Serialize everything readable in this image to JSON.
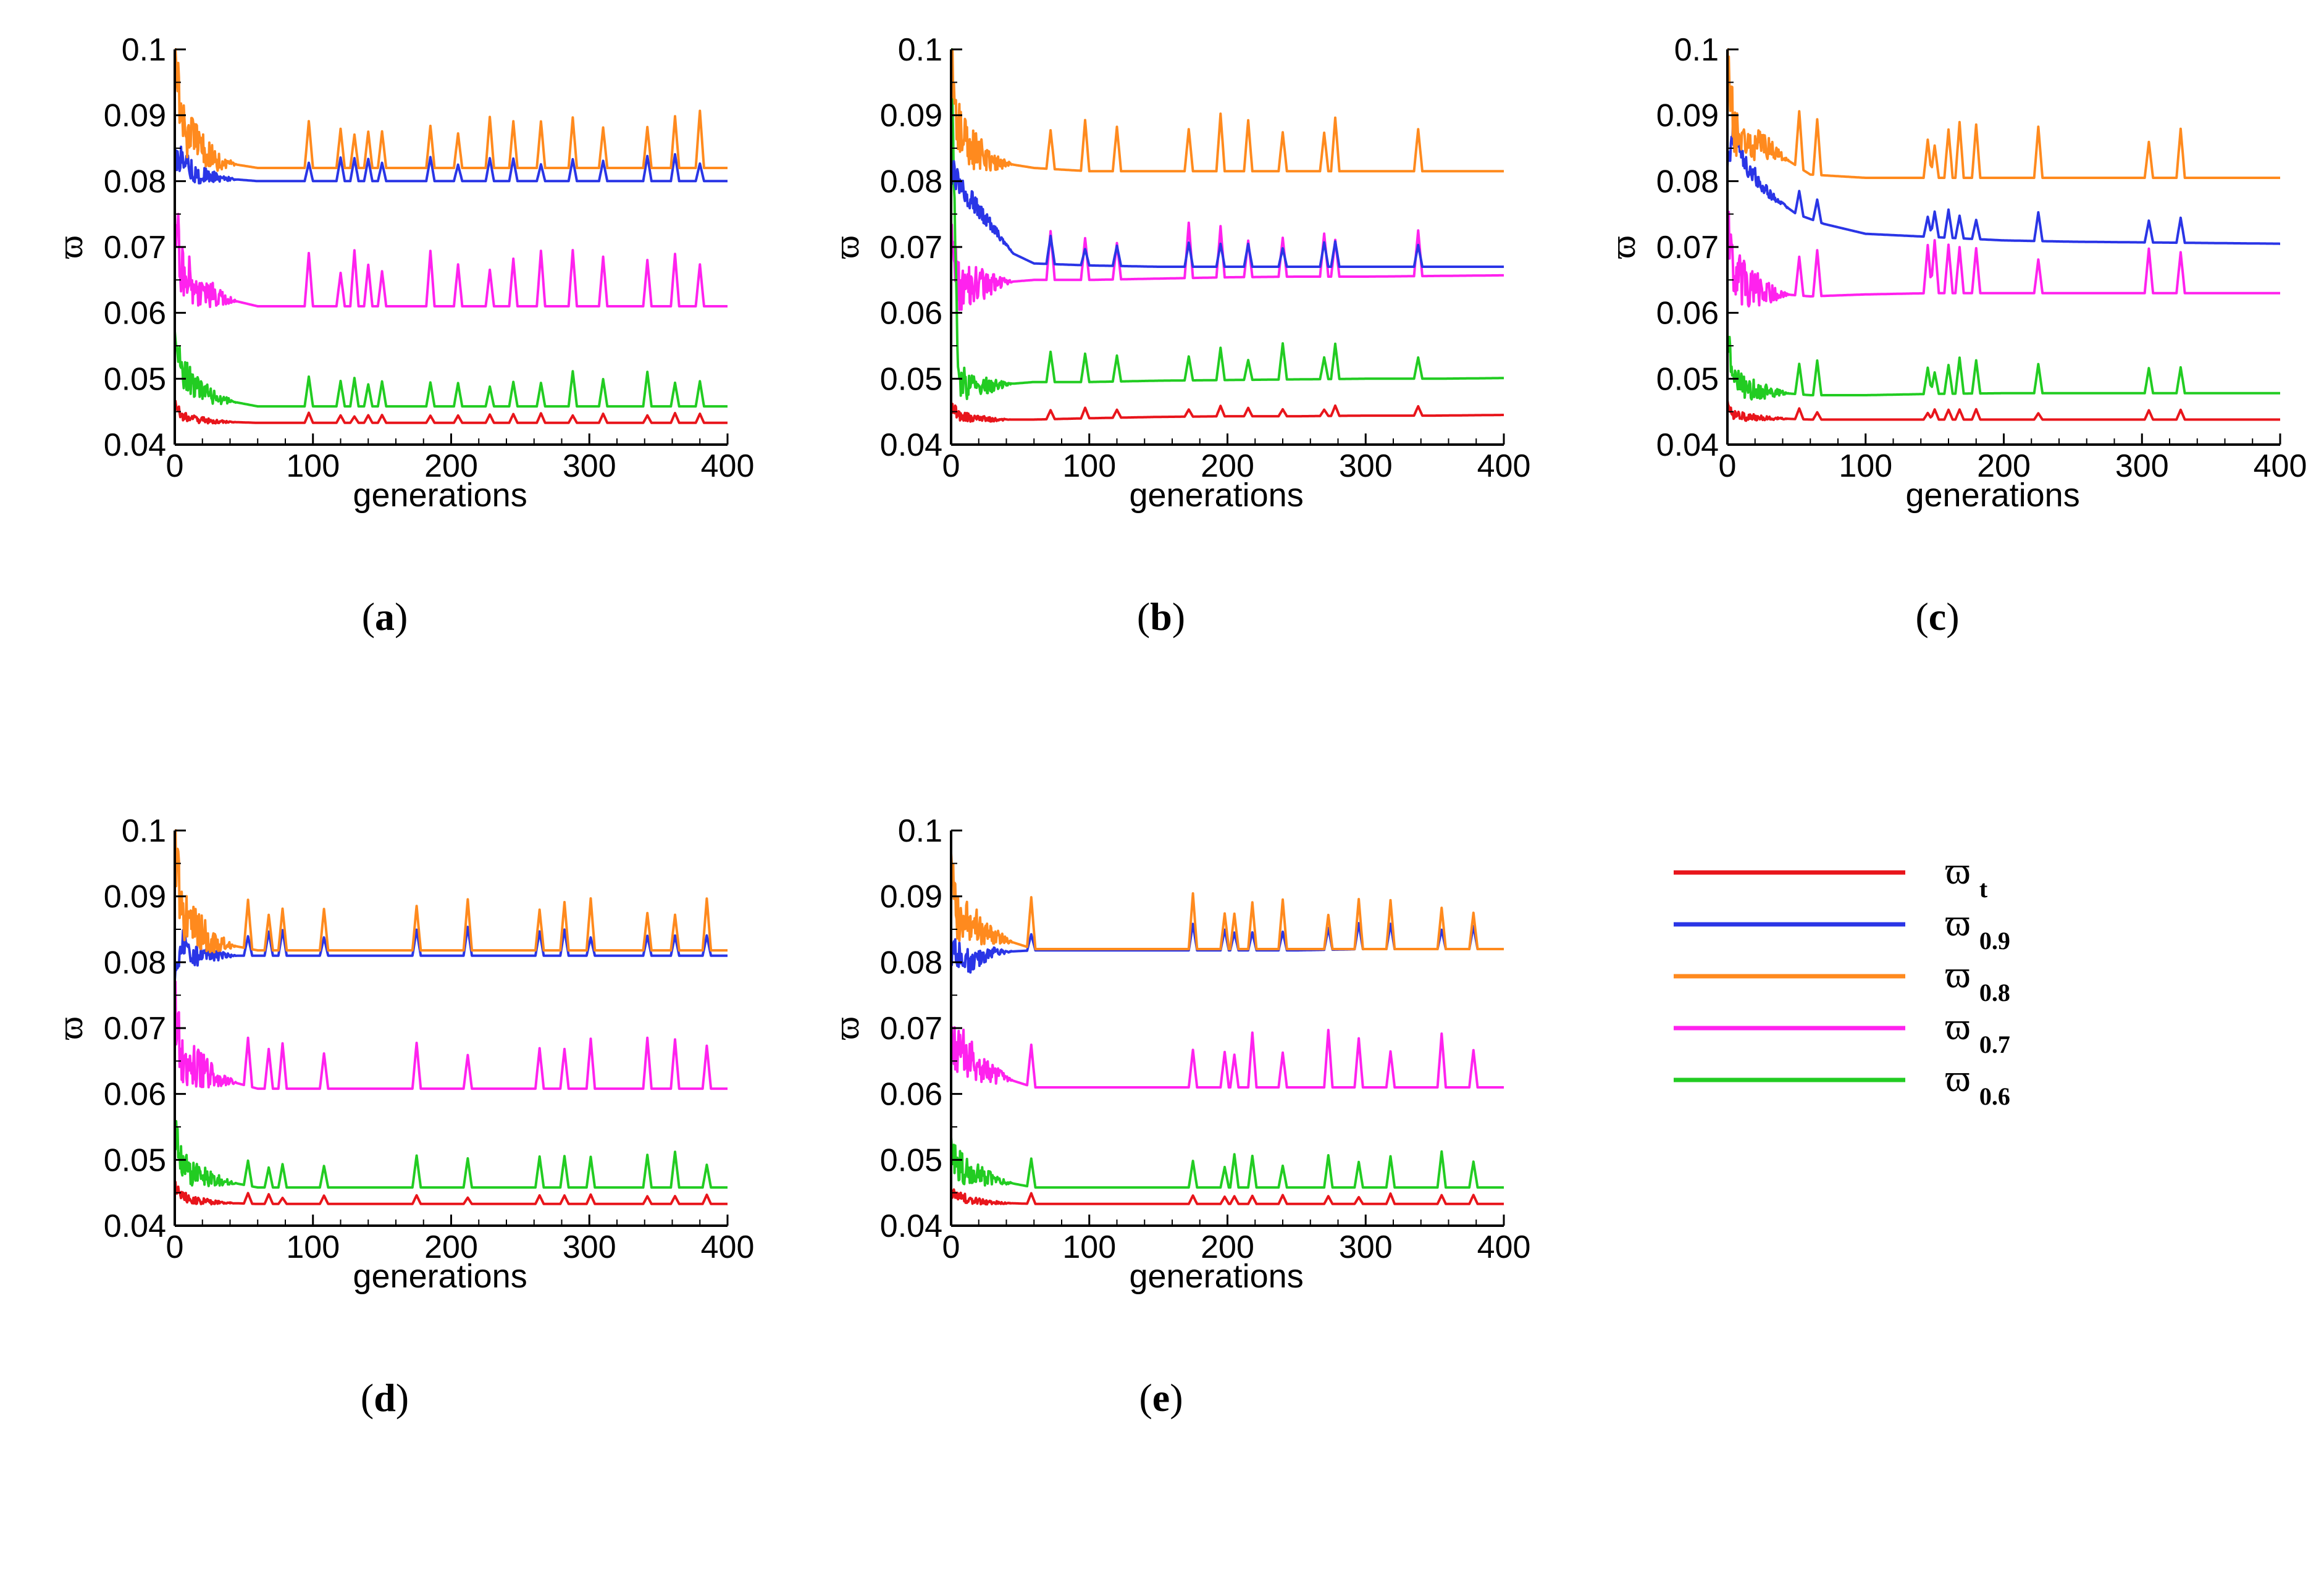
{
  "chart_data": [
    {
      "type": "line",
      "panel_label": "a",
      "xlabel": "generations",
      "ylabel": "ϖ",
      "xlim": [
        0,
        400
      ],
      "ylim": [
        0.04,
        0.1
      ],
      "xticks": [
        "0",
        "100",
        "200",
        "300",
        "400"
      ],
      "yticks": [
        "0.04",
        "0.05",
        "0.06",
        "0.07",
        "0.08",
        "0.09",
        "0.1"
      ],
      "series": [
        {
          "name": "ϖ t",
          "color": "#e8151b",
          "x": [
            0,
            5,
            15,
            30,
            60,
            100,
            150,
            200,
            250,
            300,
            350,
            400
          ],
          "values": [
            0.046,
            0.0445,
            0.0438,
            0.0435,
            0.0433,
            0.0433,
            0.0433,
            0.0433,
            0.0433,
            0.0433,
            0.0433,
            0.0433
          ]
        },
        {
          "name": "ϖ 0.9",
          "color": "#2a35e6",
          "x": [
            0,
            5,
            15,
            30,
            60,
            100,
            150,
            200,
            250,
            300,
            350,
            400
          ],
          "values": [
            0.083,
            0.084,
            0.081,
            0.0805,
            0.08,
            0.08,
            0.08,
            0.08,
            0.08,
            0.08,
            0.08,
            0.08
          ]
        },
        {
          "name": "ϖ 0.8",
          "color": "#ff8a1e",
          "x": [
            0,
            5,
            15,
            30,
            60,
            100,
            150,
            200,
            250,
            300,
            350,
            400
          ],
          "values": [
            0.1,
            0.088,
            0.086,
            0.083,
            0.082,
            0.082,
            0.082,
            0.082,
            0.082,
            0.082,
            0.082,
            0.082
          ]
        },
        {
          "name": "ϖ 0.7",
          "color": "#ff22ee",
          "x": [
            0,
            5,
            15,
            30,
            60,
            100,
            150,
            200,
            250,
            300,
            350,
            400
          ],
          "values": [
            0.076,
            0.066,
            0.064,
            0.0625,
            0.061,
            0.061,
            0.061,
            0.061,
            0.061,
            0.061,
            0.061,
            0.061
          ]
        },
        {
          "name": "ϖ 0.6",
          "color": "#22cc22",
          "x": [
            0,
            5,
            15,
            30,
            60,
            100,
            150,
            200,
            250,
            300,
            350,
            400
          ],
          "values": [
            0.057,
            0.051,
            0.049,
            0.047,
            0.0458,
            0.0458,
            0.0458,
            0.0458,
            0.0458,
            0.0458,
            0.0458,
            0.0458
          ]
        }
      ],
      "spike_generations": [
        97,
        120,
        130,
        140,
        150,
        185,
        205,
        228,
        245,
        265,
        288,
        310,
        342,
        362,
        380
      ]
    },
    {
      "type": "line",
      "panel_label": "b",
      "xlabel": "generations",
      "ylabel": "ϖ",
      "xlim": [
        0,
        400
      ],
      "ylim": [
        0.04,
        0.1
      ],
      "xticks": [
        "0",
        "100",
        "200",
        "300",
        "400"
      ],
      "yticks": [
        "0.04",
        "0.05",
        "0.06",
        "0.07",
        "0.08",
        "0.09",
        "0.1"
      ],
      "series": [
        {
          "name": "ϖ t",
          "color": "#e8151b",
          "x": [
            0,
            5,
            15,
            30,
            60,
            100,
            150,
            200,
            250,
            300,
            350,
            400
          ],
          "values": [
            0.046,
            0.0445,
            0.044,
            0.0438,
            0.0438,
            0.044,
            0.0442,
            0.0443,
            0.0443,
            0.0444,
            0.0444,
            0.0445
          ]
        },
        {
          "name": "ϖ 0.9",
          "color": "#2a35e6",
          "x": [
            0,
            5,
            15,
            30,
            45,
            60,
            100,
            150,
            200,
            250,
            300,
            350,
            400
          ],
          "values": [
            0.082,
            0.08,
            0.077,
            0.073,
            0.069,
            0.0675,
            0.0672,
            0.067,
            0.067,
            0.067,
            0.067,
            0.067,
            0.067
          ]
        },
        {
          "name": "ϖ 0.8",
          "color": "#ff8a1e",
          "x": [
            0,
            5,
            15,
            30,
            60,
            100,
            150,
            200,
            250,
            300,
            350,
            400
          ],
          "values": [
            0.098,
            0.088,
            0.085,
            0.083,
            0.082,
            0.0815,
            0.0815,
            0.0815,
            0.0815,
            0.0815,
            0.0815,
            0.0815
          ]
        },
        {
          "name": "ϖ 0.7",
          "color": "#ff22ee",
          "x": [
            0,
            5,
            15,
            30,
            60,
            100,
            150,
            200,
            250,
            300,
            350,
            400
          ],
          "values": [
            0.07,
            0.064,
            0.064,
            0.0645,
            0.065,
            0.065,
            0.0652,
            0.0654,
            0.0655,
            0.0655,
            0.0656,
            0.0657
          ]
        },
        {
          "name": "ϖ 0.6",
          "color": "#22cc22",
          "x": [
            0,
            5,
            15,
            30,
            60,
            100,
            150,
            200,
            250,
            300,
            350,
            400
          ],
          "values": [
            0.1,
            0.05,
            0.0485,
            0.049,
            0.0495,
            0.0495,
            0.0497,
            0.0498,
            0.0499,
            0.05,
            0.05,
            0.0501
          ]
        }
      ],
      "spike_generations": [
        72,
        97,
        120,
        172,
        195,
        215,
        240,
        270,
        278,
        338
      ]
    },
    {
      "type": "line",
      "panel_label": "c",
      "xlabel": "generations",
      "ylabel": "ϖ",
      "xlim": [
        0,
        400
      ],
      "ylim": [
        0.04,
        0.1
      ],
      "xticks": [
        "0",
        "100",
        "200",
        "300",
        "400"
      ],
      "yticks": [
        "0.04",
        "0.05",
        "0.06",
        "0.07",
        "0.08",
        "0.09",
        "0.1"
      ],
      "series": [
        {
          "name": "ϖ t",
          "color": "#e8151b",
          "x": [
            0,
            5,
            15,
            30,
            60,
            100,
            150,
            200,
            250,
            300,
            350,
            400
          ],
          "values": [
            0.046,
            0.0445,
            0.0442,
            0.044,
            0.0438,
            0.0438,
            0.0438,
            0.0438,
            0.0438,
            0.0438,
            0.0438,
            0.0438
          ]
        },
        {
          "name": "ϖ 0.9",
          "color": "#2a35e6",
          "x": [
            0,
            5,
            15,
            30,
            50,
            70,
            100,
            150,
            200,
            250,
            300,
            350,
            400
          ],
          "values": [
            0.084,
            0.087,
            0.082,
            0.078,
            0.075,
            0.0735,
            0.072,
            0.0715,
            0.071,
            0.0708,
            0.0707,
            0.0706,
            0.0705
          ]
        },
        {
          "name": "ϖ 0.8",
          "color": "#ff8a1e",
          "x": [
            0,
            5,
            15,
            30,
            60,
            100,
            150,
            200,
            250,
            300,
            350,
            400
          ],
          "values": [
            0.1,
            0.087,
            0.086,
            0.085,
            0.081,
            0.0805,
            0.0805,
            0.0805,
            0.0805,
            0.0805,
            0.0805,
            0.0805
          ]
        },
        {
          "name": "ϖ 0.7",
          "color": "#ff22ee",
          "x": [
            0,
            5,
            15,
            30,
            60,
            100,
            150,
            200,
            250,
            300,
            350,
            400
          ],
          "values": [
            0.075,
            0.066,
            0.064,
            0.063,
            0.0625,
            0.0628,
            0.063,
            0.063,
            0.063,
            0.063,
            0.063,
            0.063
          ]
        },
        {
          "name": "ϖ 0.6",
          "color": "#22cc22",
          "x": [
            0,
            5,
            15,
            30,
            60,
            100,
            150,
            200,
            250,
            300,
            350,
            400
          ],
          "values": [
            0.056,
            0.049,
            0.0485,
            0.048,
            0.0475,
            0.0475,
            0.0477,
            0.0478,
            0.0478,
            0.0478,
            0.0478,
            0.0478
          ]
        }
      ],
      "spike_generations": [
        52,
        65,
        145,
        150,
        160,
        168,
        180,
        225,
        305,
        328
      ]
    },
    {
      "type": "line",
      "panel_label": "d",
      "xlabel": "generations",
      "ylabel": "ϖ",
      "xlim": [
        0,
        400
      ],
      "ylim": [
        0.04,
        0.1
      ],
      "xticks": [
        "0",
        "100",
        "200",
        "300",
        "400"
      ],
      "yticks": [
        "0.04",
        "0.05",
        "0.06",
        "0.07",
        "0.08",
        "0.09",
        "0.1"
      ],
      "series": [
        {
          "name": "ϖ t",
          "color": "#e8151b",
          "x": [
            0,
            5,
            15,
            30,
            60,
            100,
            150,
            200,
            250,
            300,
            350,
            400
          ],
          "values": [
            0.046,
            0.0445,
            0.0438,
            0.0435,
            0.0433,
            0.0433,
            0.0433,
            0.0433,
            0.0433,
            0.0433,
            0.0433,
            0.0433
          ]
        },
        {
          "name": "ϖ 0.9",
          "color": "#2a35e6",
          "x": [
            0,
            5,
            15,
            30,
            60,
            100,
            150,
            200,
            250,
            300,
            350,
            400
          ],
          "values": [
            0.079,
            0.083,
            0.081,
            0.081,
            0.081,
            0.081,
            0.081,
            0.081,
            0.081,
            0.081,
            0.081,
            0.081
          ]
        },
        {
          "name": "ϖ 0.8",
          "color": "#ff8a1e",
          "x": [
            0,
            5,
            15,
            30,
            60,
            100,
            150,
            200,
            250,
            300,
            350,
            400
          ],
          "values": [
            0.098,
            0.088,
            0.085,
            0.083,
            0.0818,
            0.0818,
            0.0818,
            0.0818,
            0.0818,
            0.0818,
            0.0818,
            0.0818
          ]
        },
        {
          "name": "ϖ 0.7",
          "color": "#ff22ee",
          "x": [
            0,
            5,
            15,
            30,
            60,
            100,
            150,
            200,
            250,
            300,
            350,
            400
          ],
          "values": [
            0.074,
            0.065,
            0.064,
            0.0625,
            0.0608,
            0.0608,
            0.0608,
            0.0608,
            0.0608,
            0.0608,
            0.0608,
            0.0608
          ]
        },
        {
          "name": "ϖ 0.6",
          "color": "#22cc22",
          "x": [
            0,
            5,
            15,
            30,
            60,
            100,
            150,
            200,
            250,
            300,
            350,
            400
          ],
          "values": [
            0.055,
            0.049,
            0.048,
            0.047,
            0.0458,
            0.0458,
            0.0458,
            0.0458,
            0.0458,
            0.0458,
            0.0458,
            0.0458
          ]
        }
      ],
      "spike_generations": [
        53,
        68,
        78,
        108,
        175,
        212,
        264,
        282,
        301,
        342,
        362,
        385
      ]
    },
    {
      "type": "line",
      "panel_label": "e",
      "xlabel": "generations",
      "ylabel": "ϖ",
      "xlim": [
        0,
        400
      ],
      "ylim": [
        0.04,
        0.1
      ],
      "xticks": [
        "0",
        "100",
        "200",
        "300",
        "400"
      ],
      "yticks": [
        "0.04",
        "0.05",
        "0.06",
        "0.07",
        "0.08",
        "0.09",
        "0.1"
      ],
      "series": [
        {
          "name": "ϖ t",
          "color": "#e8151b",
          "x": [
            0,
            5,
            15,
            30,
            60,
            100,
            150,
            200,
            250,
            300,
            350,
            400
          ],
          "values": [
            0.045,
            0.0445,
            0.0438,
            0.0435,
            0.0433,
            0.0433,
            0.0433,
            0.0433,
            0.0433,
            0.0433,
            0.0433,
            0.0433
          ]
        },
        {
          "name": "ϖ 0.9",
          "color": "#2a35e6",
          "x": [
            0,
            5,
            15,
            30,
            60,
            100,
            150,
            200,
            250,
            300,
            350,
            400
          ],
          "values": [
            0.082,
            0.081,
            0.08,
            0.0815,
            0.0818,
            0.0818,
            0.0818,
            0.0818,
            0.0818,
            0.082,
            0.082,
            0.082
          ]
        },
        {
          "name": "ϖ 0.8",
          "color": "#ff8a1e",
          "x": [
            0,
            5,
            15,
            30,
            60,
            100,
            150,
            200,
            250,
            300,
            350,
            400
          ],
          "values": [
            0.094,
            0.087,
            0.086,
            0.084,
            0.082,
            0.082,
            0.082,
            0.082,
            0.082,
            0.082,
            0.082,
            0.082
          ]
        },
        {
          "name": "ϖ 0.7",
          "color": "#ff22ee",
          "x": [
            0,
            5,
            15,
            30,
            60,
            100,
            150,
            200,
            250,
            300,
            350,
            400
          ],
          "values": [
            0.069,
            0.067,
            0.065,
            0.063,
            0.061,
            0.061,
            0.061,
            0.061,
            0.061,
            0.061,
            0.061,
            0.061
          ]
        },
        {
          "name": "ϖ 0.6",
          "color": "#22cc22",
          "x": [
            0,
            5,
            15,
            30,
            60,
            100,
            150,
            200,
            250,
            300,
            350,
            400
          ],
          "values": [
            0.051,
            0.049,
            0.048,
            0.047,
            0.0458,
            0.0458,
            0.0458,
            0.0458,
            0.0458,
            0.0458,
            0.0458,
            0.0458
          ]
        }
      ],
      "spike_generations": [
        58,
        175,
        198,
        205,
        218,
        240,
        273,
        295,
        318,
        355,
        378
      ]
    }
  ],
  "legend": {
    "items": [
      {
        "symbol": "ϖ",
        "sub": "t",
        "color": "#e8151b"
      },
      {
        "symbol": "ϖ",
        "sub": "0.9",
        "color": "#2a35e6"
      },
      {
        "symbol": "ϖ",
        "sub": "0.8",
        "color": "#ff8a1e"
      },
      {
        "symbol": "ϖ",
        "sub": "0.7",
        "color": "#ff22ee"
      },
      {
        "symbol": "ϖ",
        "sub": "0.6",
        "color": "#22cc22"
      }
    ]
  }
}
